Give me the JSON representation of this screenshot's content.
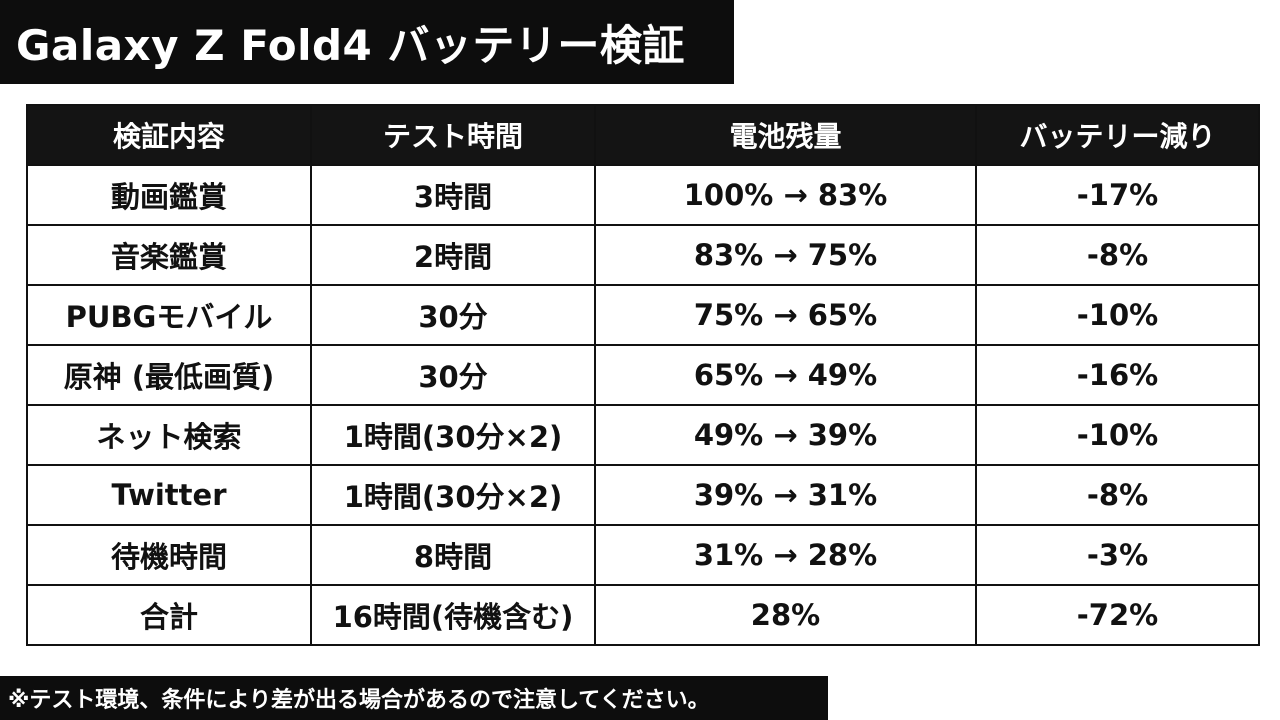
{
  "title": "Galaxy Z Fold4 バッテリー検証",
  "table": {
    "headers": [
      "検証内容",
      "テスト時間",
      "電池残量",
      "バッテリー減り"
    ],
    "rows": [
      [
        "動画鑑賞",
        "3時間",
        "100% → 83%",
        "-17%"
      ],
      [
        "音楽鑑賞",
        "2時間",
        "83% → 75%",
        "-8%"
      ],
      [
        "PUBGモバイル",
        "30分",
        "75% → 65%",
        "-10%"
      ],
      [
        "原神 (最低画質)",
        "30分",
        "65% → 49%",
        "-16%"
      ],
      [
        "ネット検索",
        "1時間(30分×2)",
        "49% → 39%",
        "-10%"
      ],
      [
        "Twitter",
        "1時間(30分×2)",
        "39% → 31%",
        "-8%"
      ],
      [
        "待機時間",
        "8時間",
        "31% → 28%",
        "-3%"
      ],
      [
        "合計",
        "16時間(待機含む)",
        "28%",
        "-72%"
      ]
    ]
  },
  "footer_note": "※テスト環境、条件により差が出る場合があるので注意してください。"
}
